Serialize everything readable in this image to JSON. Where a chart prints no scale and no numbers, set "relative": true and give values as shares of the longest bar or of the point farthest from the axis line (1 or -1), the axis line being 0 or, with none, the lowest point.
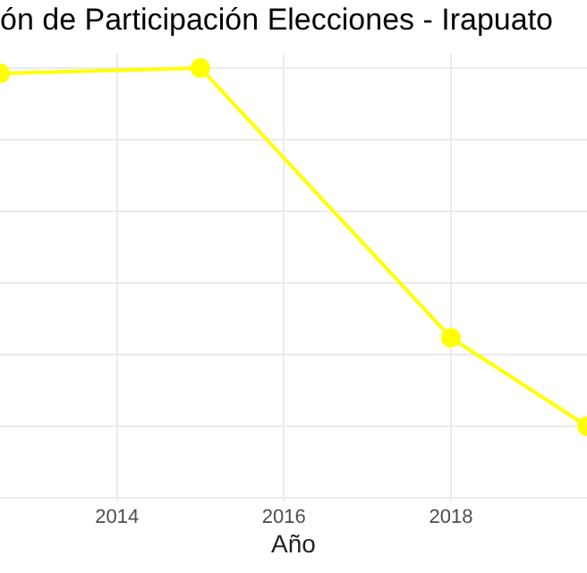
{
  "chart_data": {
    "type": "line",
    "title": "ón de Participación Elecciones - Irapuato",
    "xlabel": "Año",
    "relative": true,
    "grid": true,
    "marker": "circle",
    "x": [
      2012.6,
      2015,
      2018,
      2019.63
    ],
    "series": [
      {
        "color": "#ffff00",
        "values": [
          0.985,
          1,
          0.247,
          0
        ]
      }
    ],
    "xlim": [
      2012.6,
      2019.63
    ],
    "xticks": [
      2014,
      2016,
      2018
    ]
  }
}
